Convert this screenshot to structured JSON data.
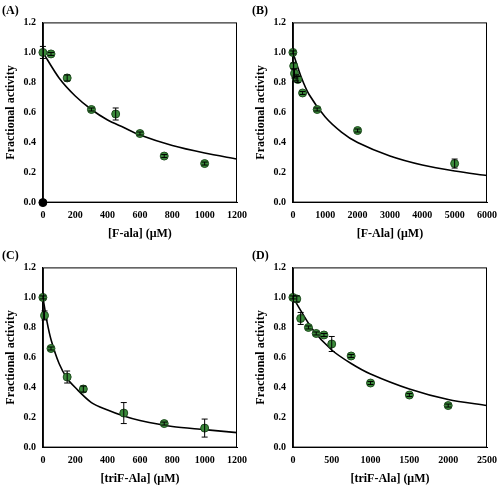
{
  "chart_data": [
    {
      "type": "scatter",
      "title": "(A)",
      "x_label": "[F-ala] (μM)",
      "y_label": "Fractional activity",
      "xlim": [
        0,
        1200
      ],
      "xticks": [
        0,
        200,
        400,
        600,
        800,
        1000,
        1200
      ],
      "ylim": [
        0,
        1.2
      ],
      "yticks": [
        {
          "value": 0,
          "label": "0.0"
        },
        {
          "value": 0.2,
          "label": "0.2"
        },
        {
          "value": 0.4,
          "label": "0.4"
        },
        {
          "value": 0.6,
          "label": "0.6"
        },
        {
          "value": 0.8,
          "label": "0.8"
        },
        {
          "value": 1.0,
          "label": "1.0"
        },
        {
          "value": 1.2,
          "label": "1.2"
        }
      ],
      "grid": false,
      "series": [
        {
          "type": "line",
          "color": "#000000",
          "line_style": "solid",
          "x": [
            0,
            100,
            200,
            300,
            400,
            500,
            600,
            800,
            1000,
            1200
          ],
          "values": [
            1.0,
            0.83,
            0.71,
            0.62,
            0.55,
            0.5,
            0.45,
            0.38,
            0.33,
            0.29
          ]
        },
        {
          "type": "scatter",
          "color": "#3a8a3a",
          "marker": "circle",
          "x": [
            0,
            50,
            150,
            300,
            450,
            600,
            750,
            1000
          ],
          "values": [
            1.0,
            0.99,
            0.83,
            0.62,
            0.59,
            0.46,
            0.31,
            0.26
          ],
          "errors": [
            0.04,
            0.01,
            0.02,
            0.01,
            0.04,
            0.01,
            0.01,
            0.01
          ]
        },
        {
          "type": "scatter",
          "color": "#000000",
          "marker": "circle",
          "x": [
            0
          ],
          "values": [
            0
          ]
        }
      ]
    },
    {
      "type": "scatter",
      "title": "(B)",
      "x_label": "[F-Ala] (μM)",
      "y_label": "Fractional activity",
      "xlim": [
        0,
        6000
      ],
      "xticks": [
        0,
        1000,
        2000,
        3000,
        4000,
        5000,
        6000
      ],
      "ylim": [
        0,
        1.2
      ],
      "yticks": [
        {
          "value": 0,
          "label": "0.0"
        },
        {
          "value": 0.2,
          "label": "0.2"
        },
        {
          "value": 0.4,
          "label": "0.4"
        },
        {
          "value": 0.6,
          "label": "0.6"
        },
        {
          "value": 0.8,
          "label": "0.8"
        },
        {
          "value": 1.0,
          "label": "1.0"
        },
        {
          "value": 1.2,
          "label": "1.2"
        }
      ],
      "grid": false,
      "series": [
        {
          "type": "line",
          "color": "#000000",
          "line_style": "solid",
          "x": [
            0,
            250,
            500,
            1000,
            1500,
            2000,
            3000,
            4000,
            5000,
            6000
          ],
          "values": [
            1.0,
            0.84,
            0.72,
            0.57,
            0.47,
            0.4,
            0.31,
            0.25,
            0.21,
            0.18
          ]
        },
        {
          "type": "scatter",
          "color": "#3a8a3a",
          "marker": "circle",
          "x": [
            0,
            25,
            50,
            100,
            150,
            300,
            750,
            2000,
            5000
          ],
          "values": [
            1.0,
            0.91,
            0.86,
            0.83,
            0.82,
            0.73,
            0.62,
            0.48,
            0.26
          ],
          "errors": [
            0.01,
            0.02,
            0.03,
            0.02,
            0.02,
            0.01,
            0.01,
            0.01,
            0.03
          ]
        }
      ]
    },
    {
      "type": "scatter",
      "title": "(C)",
      "x_label": "[triF-Ala] (μM)",
      "y_label": "Fractional activity",
      "xlim": [
        0,
        1200
      ],
      "xticks": [
        0,
        200,
        400,
        600,
        800,
        1000,
        1200
      ],
      "ylim": [
        0,
        1.2
      ],
      "yticks": [
        {
          "value": 0,
          "label": "0.0"
        },
        {
          "value": 0.2,
          "label": "0.2"
        },
        {
          "value": 0.4,
          "label": "0.4"
        },
        {
          "value": 0.6,
          "label": "0.6"
        },
        {
          "value": 0.8,
          "label": "0.8"
        },
        {
          "value": 1.0,
          "label": "1.0"
        },
        {
          "value": 1.2,
          "label": "1.2"
        }
      ],
      "grid": false,
      "series": [
        {
          "type": "line",
          "color": "#000000",
          "line_style": "solid",
          "x": [
            0,
            25,
            50,
            100,
            150,
            200,
            300,
            400,
            500,
            600,
            800,
            1000,
            1200
          ],
          "values": [
            1.0,
            0.84,
            0.72,
            0.56,
            0.46,
            0.4,
            0.3,
            0.25,
            0.21,
            0.18,
            0.14,
            0.12,
            0.1
          ]
        },
        {
          "type": "scatter",
          "color": "#3a8a3a",
          "marker": "circle",
          "x": [
            0,
            10,
            50,
            150,
            250,
            500,
            750,
            1000
          ],
          "values": [
            1.0,
            0.88,
            0.66,
            0.47,
            0.39,
            0.23,
            0.16,
            0.13
          ],
          "errors": [
            0.01,
            0.03,
            0.01,
            0.04,
            0.02,
            0.07,
            0.01,
            0.06
          ]
        }
      ]
    },
    {
      "type": "scatter",
      "title": "(D)",
      "x_label": "[triF-Ala] (μM)",
      "y_label": "Fractional activity",
      "xlim": [
        0,
        2500
      ],
      "xticks": [
        0,
        500,
        1000,
        1500,
        2000,
        2500
      ],
      "ylim": [
        0,
        1.2
      ],
      "yticks": [
        {
          "value": 0,
          "label": "0.0"
        },
        {
          "value": 0.2,
          "label": "0.2"
        },
        {
          "value": 0.4,
          "label": "0.4"
        },
        {
          "value": 0.6,
          "label": "0.6"
        },
        {
          "value": 0.8,
          "label": "0.8"
        },
        {
          "value": 1.0,
          "label": "1.0"
        },
        {
          "value": 1.2,
          "label": "1.2"
        }
      ],
      "grid": false,
      "series": [
        {
          "type": "line",
          "color": "#000000",
          "line_style": "solid",
          "x": [
            0,
            250,
            500,
            750,
            1000,
            1500,
            2000,
            2500
          ],
          "values": [
            1.0,
            0.79,
            0.65,
            0.56,
            0.49,
            0.39,
            0.32,
            0.28
          ]
        },
        {
          "type": "scatter",
          "color": "#3a8a3a",
          "marker": "circle",
          "x": [
            0,
            50,
            100,
            200,
            300,
            400,
            500,
            750,
            1000,
            1500,
            2000
          ],
          "values": [
            1.0,
            0.99,
            0.86,
            0.8,
            0.76,
            0.75,
            0.69,
            0.61,
            0.43,
            0.35,
            0.28
          ],
          "errors": [
            0.01,
            0.02,
            0.04,
            0.01,
            0.01,
            0.01,
            0.05,
            0.01,
            0.01,
            0.01,
            0.01
          ]
        }
      ]
    }
  ]
}
